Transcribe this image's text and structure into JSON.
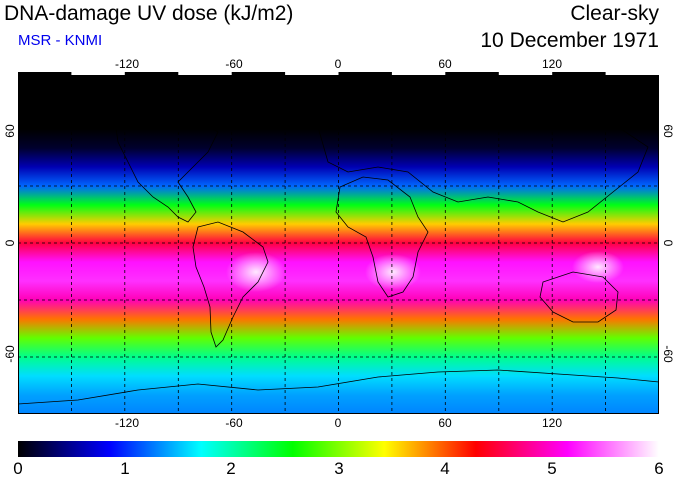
{
  "header": {
    "title": "DNA-damage UV dose (kJ/m2)",
    "subtitle": "MSR - KNMI",
    "sky_condition": "Clear-sky",
    "date": "10 December 1971"
  },
  "map": {
    "projection": "equirectangular",
    "lon_range": [
      -180,
      180
    ],
    "lat_range": [
      -90,
      90
    ],
    "lon_ticks": [
      "-120",
      "-60",
      "0",
      "60",
      "120"
    ],
    "lat_ticks": [
      "60",
      "0",
      "-60"
    ],
    "grid_style": "dashed"
  },
  "colorbar": {
    "min": 0,
    "max": 6,
    "labels": [
      "0",
      "1",
      "2",
      "3",
      "4",
      "5",
      "6"
    ],
    "colors": [
      "#000000",
      "#0000ff",
      "#00ffff",
      "#00ff00",
      "#ffff00",
      "#ff0000",
      "#ff00ff",
      "#ffffff"
    ]
  },
  "chart_data": {
    "type": "heatmap",
    "title": "DNA-damage UV dose (kJ/m2)",
    "variable": "UV dose",
    "units": "kJ/m2",
    "latitude_profile": {
      "lat": [
        90,
        75,
        60,
        50,
        40,
        30,
        20,
        10,
        0,
        -10,
        -20,
        -30,
        -40,
        -50,
        -60,
        -70,
        -80,
        -90
      ],
      "value": [
        0.0,
        0.0,
        0.0,
        0.15,
        0.6,
        1.2,
        2.5,
        3.6,
        4.5,
        5.2,
        5.3,
        4.9,
        3.9,
        2.9,
        2.1,
        1.6,
        1.4,
        1.3
      ]
    },
    "xlim": [
      -180,
      180
    ],
    "ylim": [
      -90,
      90
    ]
  }
}
